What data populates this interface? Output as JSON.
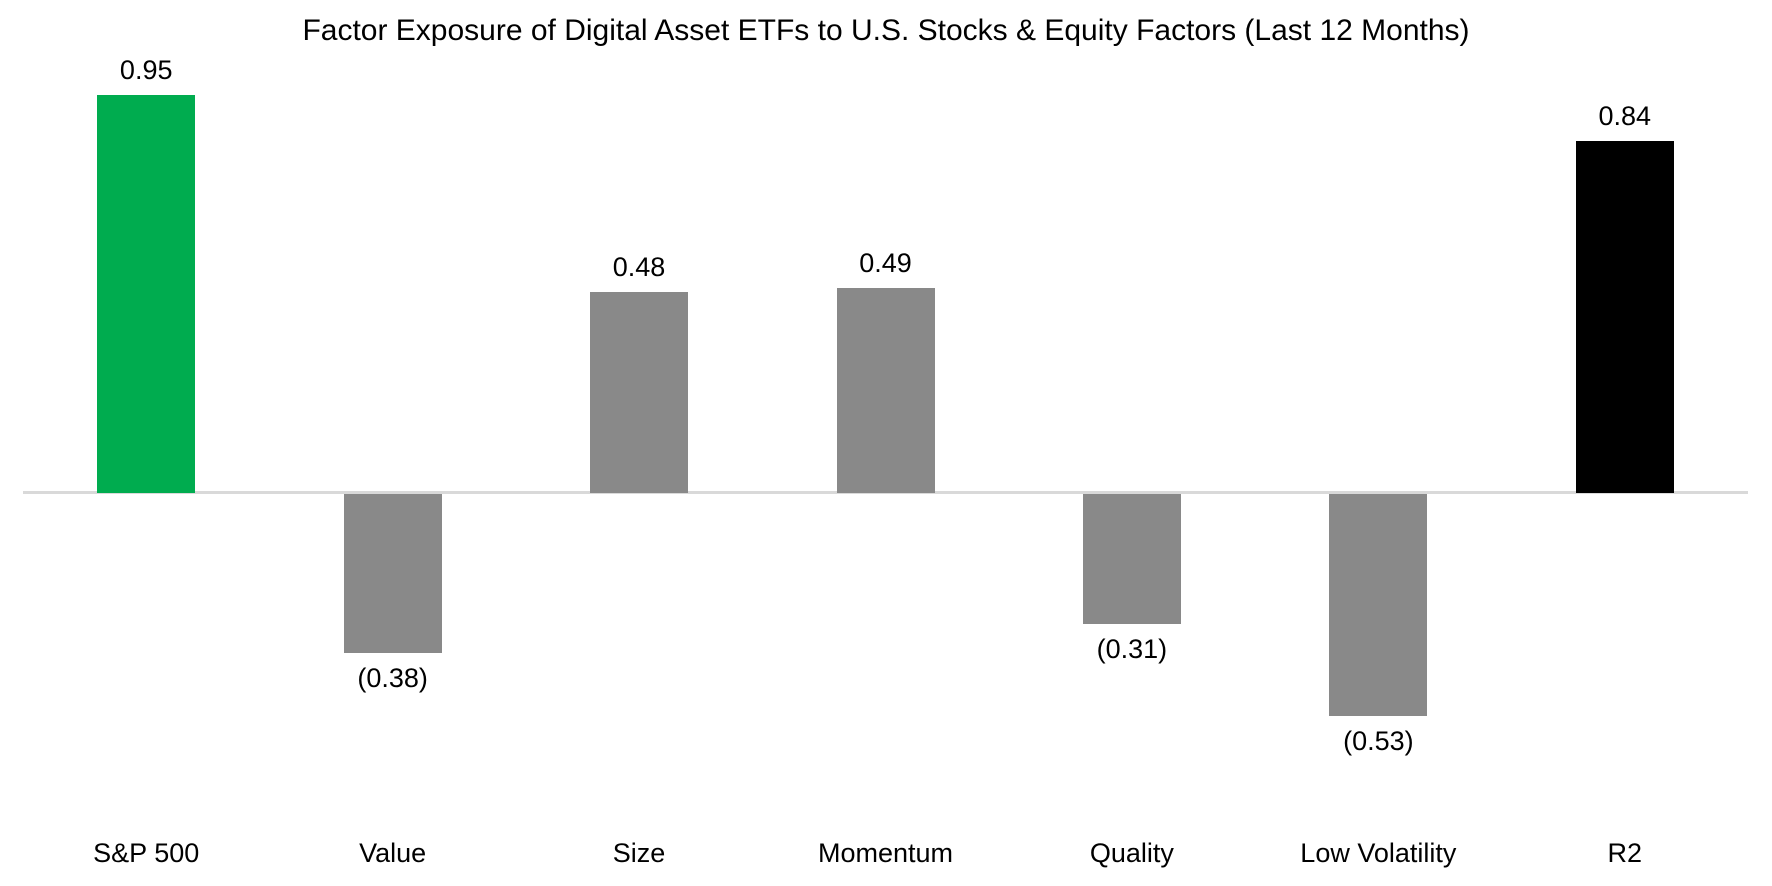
{
  "chart_data": {
    "type": "bar",
    "title": "Factor Exposure of Digital Asset ETFs to U.S. Stocks & Equity Factors (Last 12 Months)",
    "categories": [
      "S&P 500",
      "Value",
      "Size",
      "Momentum",
      "Quality",
      "Low Volatility",
      "R2"
    ],
    "values": [
      0.95,
      -0.38,
      0.48,
      0.49,
      -0.31,
      -0.53,
      0.84
    ],
    "data_labels": [
      "0.95",
      "(0.38)",
      "0.48",
      "0.49",
      "(0.31)",
      "(0.53)",
      "0.84"
    ],
    "bar_colors": [
      "#00ac4f",
      "#898989",
      "#898989",
      "#898989",
      "#898989",
      "#898989",
      "#000000"
    ],
    "axis_line_color": "#d9d9d9",
    "background_color": "#ffffff",
    "ylim": [
      -0.75,
      1.05
    ],
    "grid": false,
    "legend": false,
    "xlabel": "",
    "ylabel": "",
    "negative_format": "parentheses"
  }
}
